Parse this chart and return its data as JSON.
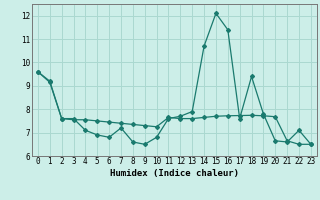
{
  "xlabel": "Humidex (Indice chaleur)",
  "bg_color": "#cceee8",
  "grid_color": "#aad8d0",
  "line_color": "#1a7a6e",
  "xlim": [
    -0.5,
    23.5
  ],
  "ylim": [
    6,
    12.5
  ],
  "yticks": [
    6,
    7,
    8,
    9,
    10,
    11,
    12
  ],
  "xticks": [
    0,
    1,
    2,
    3,
    4,
    5,
    6,
    7,
    8,
    9,
    10,
    11,
    12,
    13,
    14,
    15,
    16,
    17,
    18,
    19,
    20,
    21,
    22,
    23
  ],
  "series1_x": [
    0,
    1,
    2,
    3,
    4,
    5,
    6,
    7,
    8,
    9,
    10,
    11,
    12,
    13,
    14,
    15,
    16,
    17,
    18,
    19,
    20,
    21,
    22,
    23
  ],
  "series1_y": [
    9.6,
    9.2,
    7.6,
    7.6,
    7.1,
    6.9,
    6.8,
    7.2,
    6.6,
    6.5,
    6.8,
    7.6,
    7.7,
    7.9,
    10.7,
    12.1,
    11.4,
    7.6,
    9.4,
    7.8,
    6.65,
    6.6,
    7.1,
    6.5
  ],
  "series2_x": [
    0,
    1,
    2,
    3,
    4,
    5,
    6,
    7,
    8,
    9,
    10,
    11,
    12,
    13,
    14,
    15,
    16,
    17,
    18,
    19,
    20,
    21,
    22,
    23
  ],
  "series2_y": [
    9.6,
    9.15,
    7.6,
    7.55,
    7.55,
    7.5,
    7.45,
    7.4,
    7.35,
    7.3,
    7.25,
    7.65,
    7.6,
    7.6,
    7.65,
    7.7,
    7.72,
    7.73,
    7.74,
    7.72,
    7.68,
    6.65,
    6.5,
    6.5
  ]
}
